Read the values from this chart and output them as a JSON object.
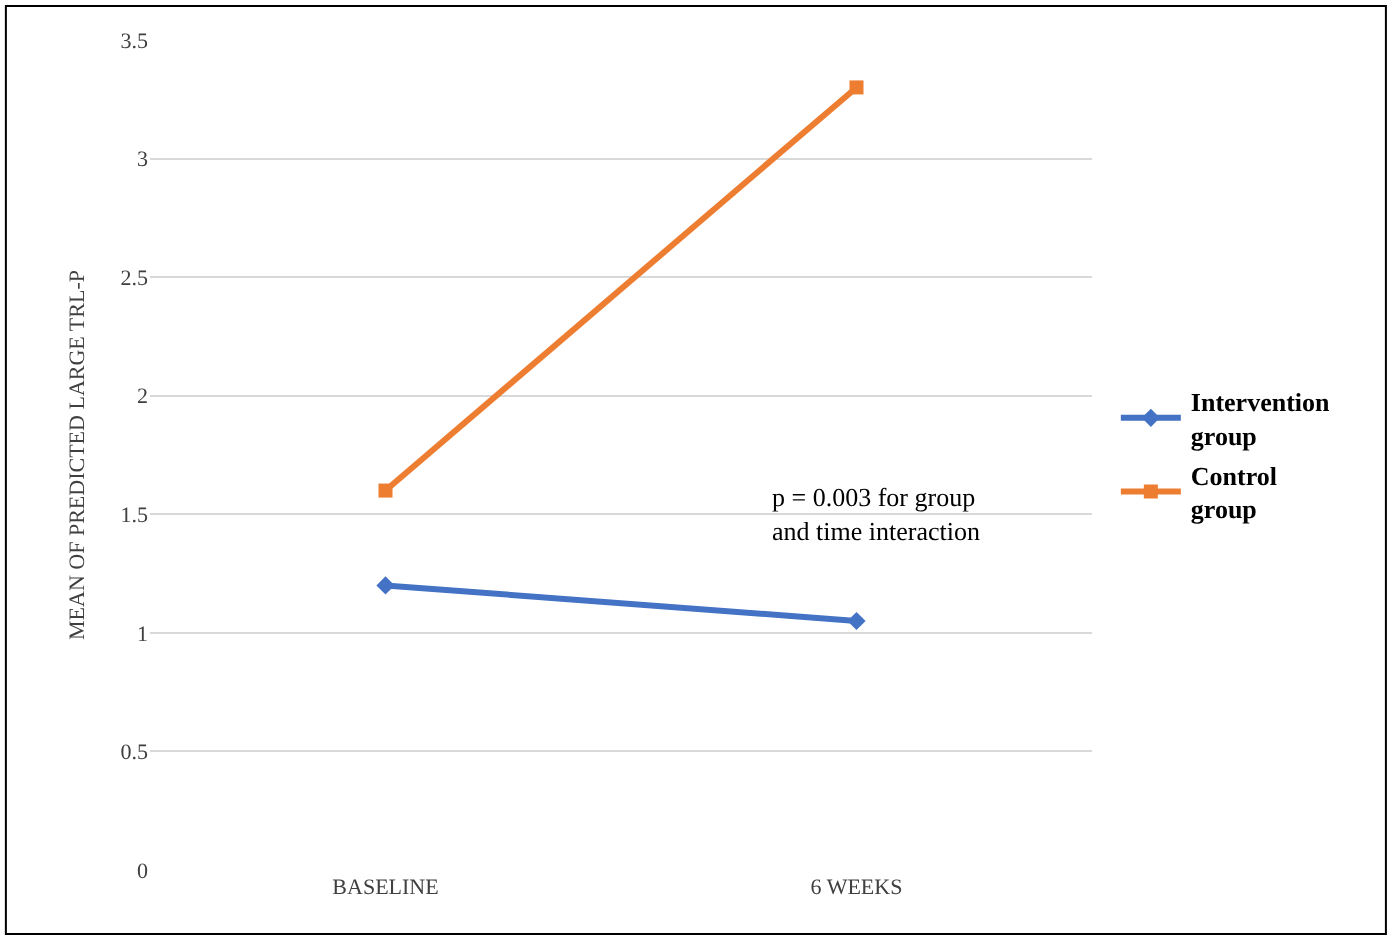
{
  "chart_data": {
    "type": "line",
    "ylabel": "MEAN OF PREDICTED LARGE TRL-P",
    "categories": [
      "BASELINE",
      "6 WEEKS"
    ],
    "series": [
      {
        "name": "Intervention group",
        "color": "#4472c4",
        "values": [
          1.2,
          1.05
        ],
        "marker": "diamond"
      },
      {
        "name": "Control group",
        "color": "#ed7d31",
        "values": [
          1.6,
          3.3
        ],
        "marker": "square"
      }
    ],
    "ylim": [
      0,
      3.5
    ],
    "yticks": [
      0,
      0.5,
      1,
      1.5,
      2,
      2.5,
      3,
      3.5
    ],
    "grid": "y",
    "legend": "right",
    "line_style": "solid",
    "annotations": [
      "p = 0.003 for group and time interaction"
    ]
  }
}
